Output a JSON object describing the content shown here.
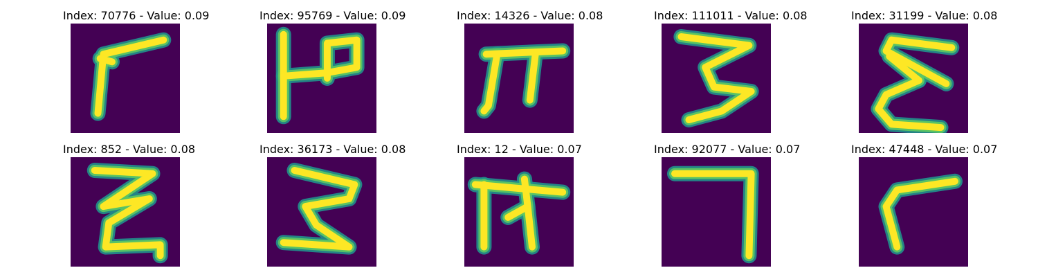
{
  "figure": {
    "colormap": "viridis",
    "colors": {
      "background": "#440154",
      "mid": "#21918c",
      "bright": "#fde725",
      "edge": "#5ec962"
    },
    "panels": [
      {
        "title": "Index: 70776 - Value: 0.09",
        "glyph": "P-shape slanted",
        "strokes": [
          [
            [
              0.25,
              0.82
            ],
            [
              0.3,
              0.28
            ],
            [
              0.85,
              0.15
            ]
          ],
          [
            [
              0.27,
              0.32
            ],
            [
              0.38,
              0.35
            ]
          ]
        ]
      },
      {
        "title": "Index: 95769 - Value: 0.09",
        "glyph": "vertical bar with loop",
        "strokes": [
          [
            [
              0.15,
              0.1
            ],
            [
              0.15,
              0.85
            ]
          ],
          [
            [
              0.15,
              0.48
            ],
            [
              0.55,
              0.45
            ],
            [
              0.82,
              0.4
            ],
            [
              0.82,
              0.15
            ],
            [
              0.55,
              0.18
            ],
            [
              0.55,
              0.5
            ]
          ]
        ]
      },
      {
        "title": "Index: 14326 - Value: 0.08",
        "glyph": "pi-like",
        "strokes": [
          [
            [
              0.2,
              0.28
            ],
            [
              0.9,
              0.25
            ]
          ],
          [
            [
              0.3,
              0.28
            ],
            [
              0.22,
              0.75
            ],
            [
              0.18,
              0.8
            ]
          ],
          [
            [
              0.65,
              0.28
            ],
            [
              0.6,
              0.7
            ]
          ]
        ]
      },
      {
        "title": "Index: 111011 - Value: 0.08",
        "glyph": "three-like",
        "strokes": [
          [
            [
              0.18,
              0.12
            ],
            [
              0.8,
              0.2
            ],
            [
              0.4,
              0.4
            ],
            [
              0.48,
              0.58
            ],
            [
              0.82,
              0.62
            ],
            [
              0.55,
              0.8
            ],
            [
              0.25,
              0.88
            ]
          ]
        ]
      },
      {
        "title": "Index: 31199 - Value: 0.08",
        "glyph": "epsilon-like",
        "strokes": [
          [
            [
              0.85,
              0.22
            ],
            [
              0.3,
              0.15
            ],
            [
              0.25,
              0.25
            ],
            [
              0.8,
              0.55
            ]
          ],
          [
            [
              0.28,
              0.3
            ],
            [
              0.55,
              0.52
            ]
          ],
          [
            [
              0.55,
              0.52
            ],
            [
              0.25,
              0.65
            ],
            [
              0.18,
              0.78
            ],
            [
              0.3,
              0.92
            ],
            [
              0.75,
              0.95
            ]
          ]
        ]
      },
      {
        "title": "Index: 852 - Value: 0.08",
        "glyph": "zigzag",
        "strokes": [
          [
            [
              0.22,
              0.12
            ],
            [
              0.75,
              0.15
            ],
            [
              0.3,
              0.45
            ],
            [
              0.72,
              0.38
            ],
            [
              0.35,
              0.6
            ],
            [
              0.32,
              0.82
            ],
            [
              0.82,
              0.8
            ],
            [
              0.82,
              0.9
            ]
          ]
        ]
      },
      {
        "title": "Index: 36173 - Value: 0.08",
        "glyph": "three-like wide",
        "strokes": [
          [
            [
              0.25,
              0.12
            ],
            [
              0.8,
              0.25
            ],
            [
              0.75,
              0.38
            ],
            [
              0.35,
              0.45
            ],
            [
              0.45,
              0.62
            ],
            [
              0.75,
              0.82
            ],
            [
              0.15,
              0.78
            ]
          ]
        ]
      },
      {
        "title": "Index: 12 - Value: 0.07",
        "glyph": "pi-like with cross",
        "strokes": [
          [
            [
              0.1,
              0.25
            ],
            [
              0.9,
              0.32
            ]
          ],
          [
            [
              0.18,
              0.25
            ],
            [
              0.18,
              0.82
            ]
          ],
          [
            [
              0.55,
              0.2
            ],
            [
              0.58,
              0.45
            ],
            [
              0.4,
              0.55
            ]
          ],
          [
            [
              0.58,
              0.45
            ],
            [
              0.62,
              0.82
            ]
          ]
        ]
      },
      {
        "title": "Index: 92077 - Value: 0.07",
        "glyph": "seven-like",
        "strokes": [
          [
            [
              0.12,
              0.15
            ],
            [
              0.82,
              0.15
            ],
            [
              0.8,
              0.9
            ]
          ]
        ]
      },
      {
        "title": "Index: 47448 - Value: 0.07",
        "glyph": "r-like",
        "strokes": [
          [
            [
              0.88,
              0.22
            ],
            [
              0.35,
              0.3
            ],
            [
              0.25,
              0.45
            ],
            [
              0.35,
              0.82
            ]
          ]
        ]
      }
    ]
  }
}
